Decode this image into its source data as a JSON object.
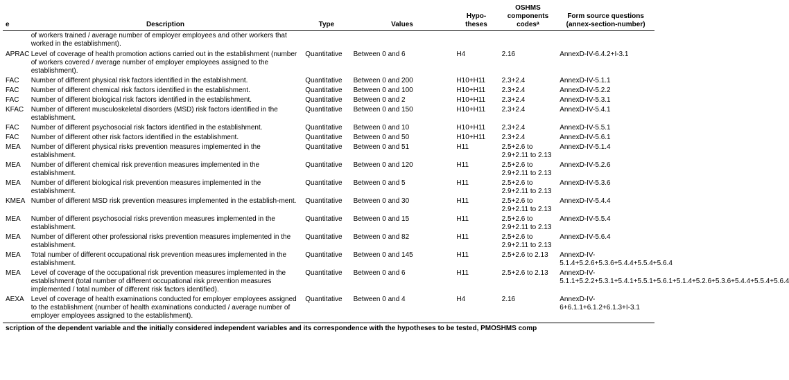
{
  "headers": {
    "code": "e",
    "description": "Description",
    "type": "Type",
    "values": "Values",
    "hypotheses": "Hypo-\ntheses",
    "oshms": "OSHMS components codesᵃ",
    "form": "Form source questions (annex-section-number)"
  },
  "leading_row": {
    "description": "of workers trained / average number of employer employees and other workers that worked in the establishment)."
  },
  "rows": [
    {
      "code": "APRAC",
      "description": "Level of coverage of health promotion actions carried out in the establishment (number of workers covered / average number of employer employees assigned to the establishment).",
      "type": "Quantitative",
      "values": "Between 0 and 6",
      "hypotheses": "H4",
      "oshms": "2.16",
      "form": "AnnexD-IV-6.4.2+I-3.1"
    },
    {
      "code": "FAC",
      "description": "Number of different physical risk factors identified in the establishment.",
      "type": "Quantitative",
      "values": "Between 0 and 200",
      "hypotheses": "H10+H11",
      "oshms": "2.3+2.4",
      "form": "AnnexD-IV-5.1.1"
    },
    {
      "code": "FAC",
      "description": "Number of different chemical risk factors identified in the establishment.",
      "type": "Quantitative",
      "values": "Between 0 and 100",
      "hypotheses": "H10+H11",
      "oshms": "2.3+2.4",
      "form": "AnnexD-IV-5.2.2"
    },
    {
      "code": "FAC",
      "description": "Number of different biological risk factors identified in the establishment.",
      "type": "Quantitative",
      "values": "Between 0 and 2",
      "hypotheses": "H10+H11",
      "oshms": "2.3+2.4",
      "form": "AnnexD-IV-5.3.1"
    },
    {
      "code": "KFAC",
      "description": "Number of different musculoskeletal disorders (MSD) risk factors identified in the establishment.",
      "type": "Quantitative",
      "values": "Between 0 and 150",
      "hypotheses": "H10+H11",
      "oshms": "2.3+2.4",
      "form": "AnnexD-IV-5.4.1"
    },
    {
      "code": "FAC",
      "description": "Number of different psychosocial risk factors identified in the establishment.",
      "type": "Quantitative",
      "values": "Between 0 and 10",
      "hypotheses": "H10+H11",
      "oshms": "2.3+2.4",
      "form": "AnnexD-IV-5.5.1"
    },
    {
      "code": "FAC",
      "description": "Number of different other risk factors identified in the establishment.",
      "type": "Quantitative",
      "values": "Between 0 and 50",
      "hypotheses": "H10+H11",
      "oshms": "2.3+2.4",
      "form": "AnnexD-IV-5.6.1"
    },
    {
      "code": "MEA",
      "description": "Number of different physical risks prevention measures implemented in the establishment.",
      "type": "Quantitative",
      "values": "Between 0 and 51",
      "hypotheses": "H11",
      "oshms": "2.5+2.6 to 2.9+2.11 to 2.13",
      "form": "AnnexD-IV-5.1.4"
    },
    {
      "code": "MEA",
      "description": "Number of different chemical risk prevention measures implemented in the establishment.",
      "type": "Quantitative",
      "values": "Between 0 and 120",
      "hypotheses": "H11",
      "oshms": "2.5+2.6 to 2.9+2.11 to 2.13",
      "form": "AnnexD-IV-5.2.6"
    },
    {
      "code": "MEA",
      "description": "Number of different biological risk prevention measures implemented in the establishment.",
      "type": "Quantitative",
      "values": "Between 0 and 5",
      "hypotheses": "H11",
      "oshms": "2.5+2.6 to 2.9+2.11 to 2.13",
      "form": "AnnexD-IV-5.3.6"
    },
    {
      "code": "KMEA",
      "description": "Number of different MSD risk prevention measures implemented in the establish-ment.",
      "type": "Quantitative",
      "values": "Between 0 and 30",
      "hypotheses": "H11",
      "oshms": "2.5+2.6 to 2.9+2.11 to 2.13",
      "form": "AnnexD-IV-5.4.4"
    },
    {
      "code": "MEA",
      "description": "Number of different psychosocial risks prevention measures implemented in the establishment.",
      "type": "Quantitative",
      "values": "Between 0 and 15",
      "hypotheses": "H11",
      "oshms": "2.5+2.6 to 2.9+2.11 to 2.13",
      "form": "AnnexD-IV-5.5.4"
    },
    {
      "code": "MEA",
      "description": "Number of different other professional risks prevention measures implemented in the establishment.",
      "type": "Quantitative",
      "values": "Between 0 and 82",
      "hypotheses": "H11",
      "oshms": "2.5+2.6 to 2.9+2.11 to 2.13",
      "form": "AnnexD-IV-5.6.4"
    },
    {
      "code": "MEA",
      "description": "Total number of different occupational risk prevention measures implemented in the establishment.",
      "type": "Quantitative",
      "values": "Between 0 and 145",
      "hypotheses": "H11",
      "oshms": "2.5+2.6 to 2.13",
      "form": "AnnexD-IV-5.1.4+5.2.6+5.3.6+5.4.4+5.5.4+5.6.4"
    },
    {
      "code": "MEA",
      "description": "Level of coverage of the occupational risk prevention measures implemented in the establishment (total number of different occupational risk prevention measures implemented / total number of different risk factors identified).",
      "type": "Quantitative",
      "values": "Between 0 and 6",
      "hypotheses": "H11",
      "oshms": "2.5+2.6 to 2.13",
      "form": "AnnexD-IV-5.1.1+5.2.2+5.3.1+5.4.1+5.5.1+5.6.1+5.1.4+5.2.6+5.3.6+5.4.4+5.5.4+5.6.4"
    },
    {
      "code": "AEXA",
      "description": "Level of coverage of health examinations conducted for employer employees assigned to the establishment (number of health examinations conducted / average number of employer employees assigned to the establishment).",
      "type": "Quantitative",
      "values": "Between 0 and 4",
      "hypotheses": "H4",
      "oshms": "2.16",
      "form": "AnnexD-IV-6+6.1.1+6.1.2+6.1.3+I-3.1"
    }
  ],
  "footer": "scription of the dependent variable and the initially considered independent variables and its correspondence with the hypotheses to be tested, PMOSHMS comp",
  "style": {
    "background": "#ffffff",
    "text": "#000000",
    "border": "#000000",
    "font_size_body": 10,
    "font_size_header": 10
  }
}
